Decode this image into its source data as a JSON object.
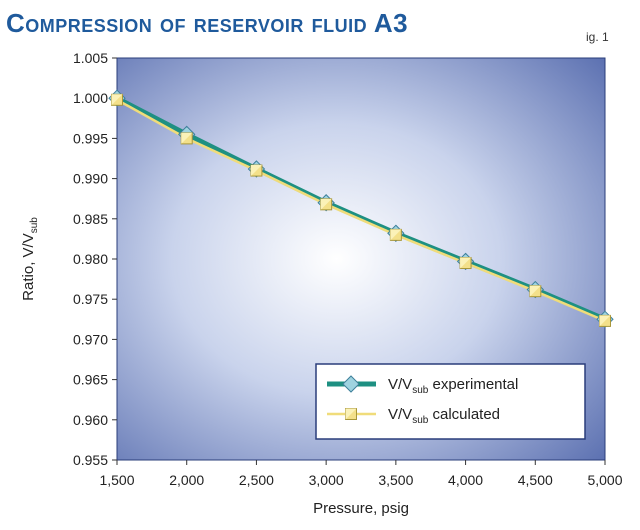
{
  "title": "Compression of reservoir fluid A3",
  "fig_label": "ig. 1",
  "colors": {
    "experimental_line": "#1e9082",
    "experimental_marker": "#9fd3e0",
    "calculated_line": "#f0dc7a",
    "calculated_marker": "#f3e08a",
    "plot_bg_center": "#ffffff",
    "plot_bg_edge": "#5a6fb0"
  },
  "chart_data": {
    "type": "line",
    "x": [
      1500,
      2000,
      2500,
      3000,
      3500,
      4000,
      4500,
      5000
    ],
    "x_tick_labels": [
      "1,500",
      "2,000",
      "2,500",
      "3,000",
      "3,500",
      "4,000",
      "4,500",
      "5,000"
    ],
    "y_tick_labels": [
      "1.005",
      "1.000",
      "0.995",
      "0.990",
      "0.985",
      "0.980",
      "0.975",
      "0.970",
      "0.965",
      "0.960",
      "0.955"
    ],
    "xlim": [
      1500,
      5000
    ],
    "ylim": [
      0.955,
      1.005
    ],
    "xlabel": "Pressure, psig",
    "ylabel": "Ratio, V/Vsub",
    "grid": false,
    "legend_position": "lower-right",
    "series": [
      {
        "name": "V/Vsub experimental",
        "values": [
          1.0,
          0.9955,
          0.9912,
          0.987,
          0.9832,
          0.9797,
          0.9762,
          0.9725
        ]
      },
      {
        "name": "V/Vsub calculated",
        "values": [
          0.9998,
          0.995,
          0.991,
          0.9868,
          0.983,
          0.9795,
          0.976,
          0.9723
        ]
      }
    ]
  }
}
